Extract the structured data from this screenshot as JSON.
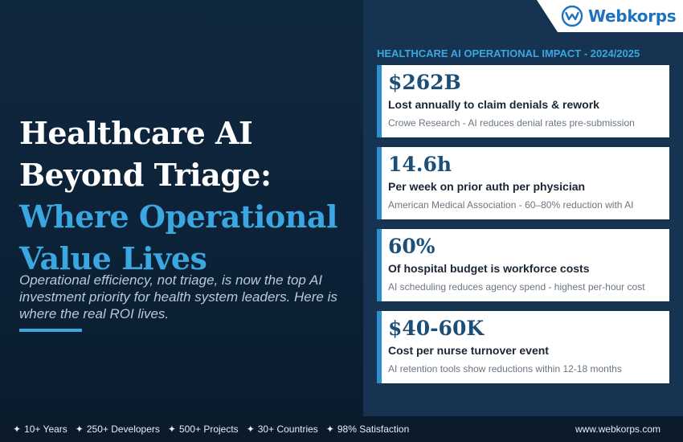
{
  "headline": {
    "line1": "Healthcare AI",
    "line2": "Beyond Triage:",
    "line3": "Where Operational",
    "line4": "Value Lives"
  },
  "subtext": "Operational efficiency, not triage, is now the top AI investment priority for health system leaders. Here is where the real ROI lives.",
  "logo": {
    "name": "Webkorps",
    "icon": "webkorps-w-logo-icon",
    "color": "#1e73be"
  },
  "panel_title": "HEALTHCARE AI OPERATIONAL IMPACT - 2024/2025",
  "cards": [
    {
      "value": "$262B",
      "description": "Lost annually to claim denials & rework",
      "source": "Crowe Research - AI reduces denial rates pre-submission"
    },
    {
      "value": "14.6h",
      "description": "Per week on prior auth per physician",
      "source": "American Medical Association - 60–80% reduction with AI"
    },
    {
      "value": "60%",
      "description": "Of hospital budget is workforce costs",
      "source": "AI scheduling reduces agency spend - highest per-hour cost"
    },
    {
      "value": "$40-60K",
      "description": "Cost per nurse turnover event",
      "source": "AI retention tools show reductions within 12-18 months"
    }
  ],
  "footer": {
    "stats": [
      "10+ Years",
      "250+ Developers",
      "500+ Projects",
      "30+ Countries",
      "98% Satisfaction"
    ],
    "star_icon": "sparkle-star-icon",
    "website": "www.webkorps.com"
  },
  "colors": {
    "accent_blue": "#3aa7e0",
    "card_value": "#1b4f78",
    "panel_bg": "#163452",
    "background": "#10283f"
  }
}
